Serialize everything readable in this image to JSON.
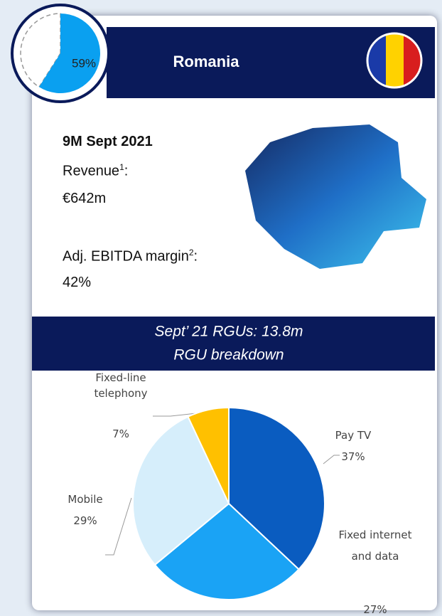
{
  "header": {
    "title": "Romania"
  },
  "kpis": {
    "period": "9M Sept 2021",
    "revenue_label": "Revenue",
    "revenue_note": "1",
    "revenue_suffix": ":",
    "revenue_value": "€642m",
    "ebitda_label": "Adj. EBITDA margin",
    "ebitda_note": "2",
    "ebitda_suffix": ":",
    "ebitda_value": "42%"
  },
  "chart_data": [
    {
      "type": "pie",
      "values": [
        59
      ],
      "value_labels": [
        "59%"
      ],
      "color": "#0aa0f0"
    },
    {
      "type": "pie",
      "title": "Sept’ 21 RGUs: 13.8m",
      "subtitle": "RGU breakdown",
      "categories": [
        "Pay TV",
        "Fixed internet and data",
        "Mobile",
        "Fixed-line telephony"
      ],
      "values": [
        37,
        27,
        29,
        7
      ],
      "value_labels": [
        "37%",
        "27%",
        "29%",
        "7%"
      ],
      "colors": [
        "#0a5cc0",
        "#1aa3f5",
        "#d6eefb",
        "#ffc000"
      ]
    }
  ]
}
